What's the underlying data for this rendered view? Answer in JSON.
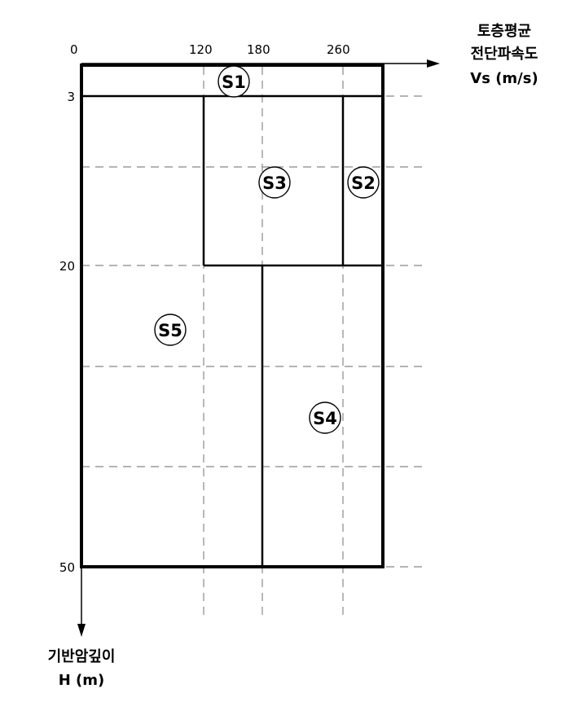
{
  "axes": {
    "x_title_line1": "토층평균",
    "x_title_line2": "전단파속도",
    "x_title_line3": "Vs (m/s)",
    "y_title_line1": "기반암깊이",
    "y_title_line2": "H (m)",
    "x_ticks": [
      "0",
      "120",
      "180",
      "260"
    ],
    "y_ticks": [
      "3",
      "20",
      "50"
    ]
  },
  "zones": {
    "s1": "S1",
    "s2": "S2",
    "s3": "S3",
    "s4": "S4",
    "s5": "S5"
  }
}
